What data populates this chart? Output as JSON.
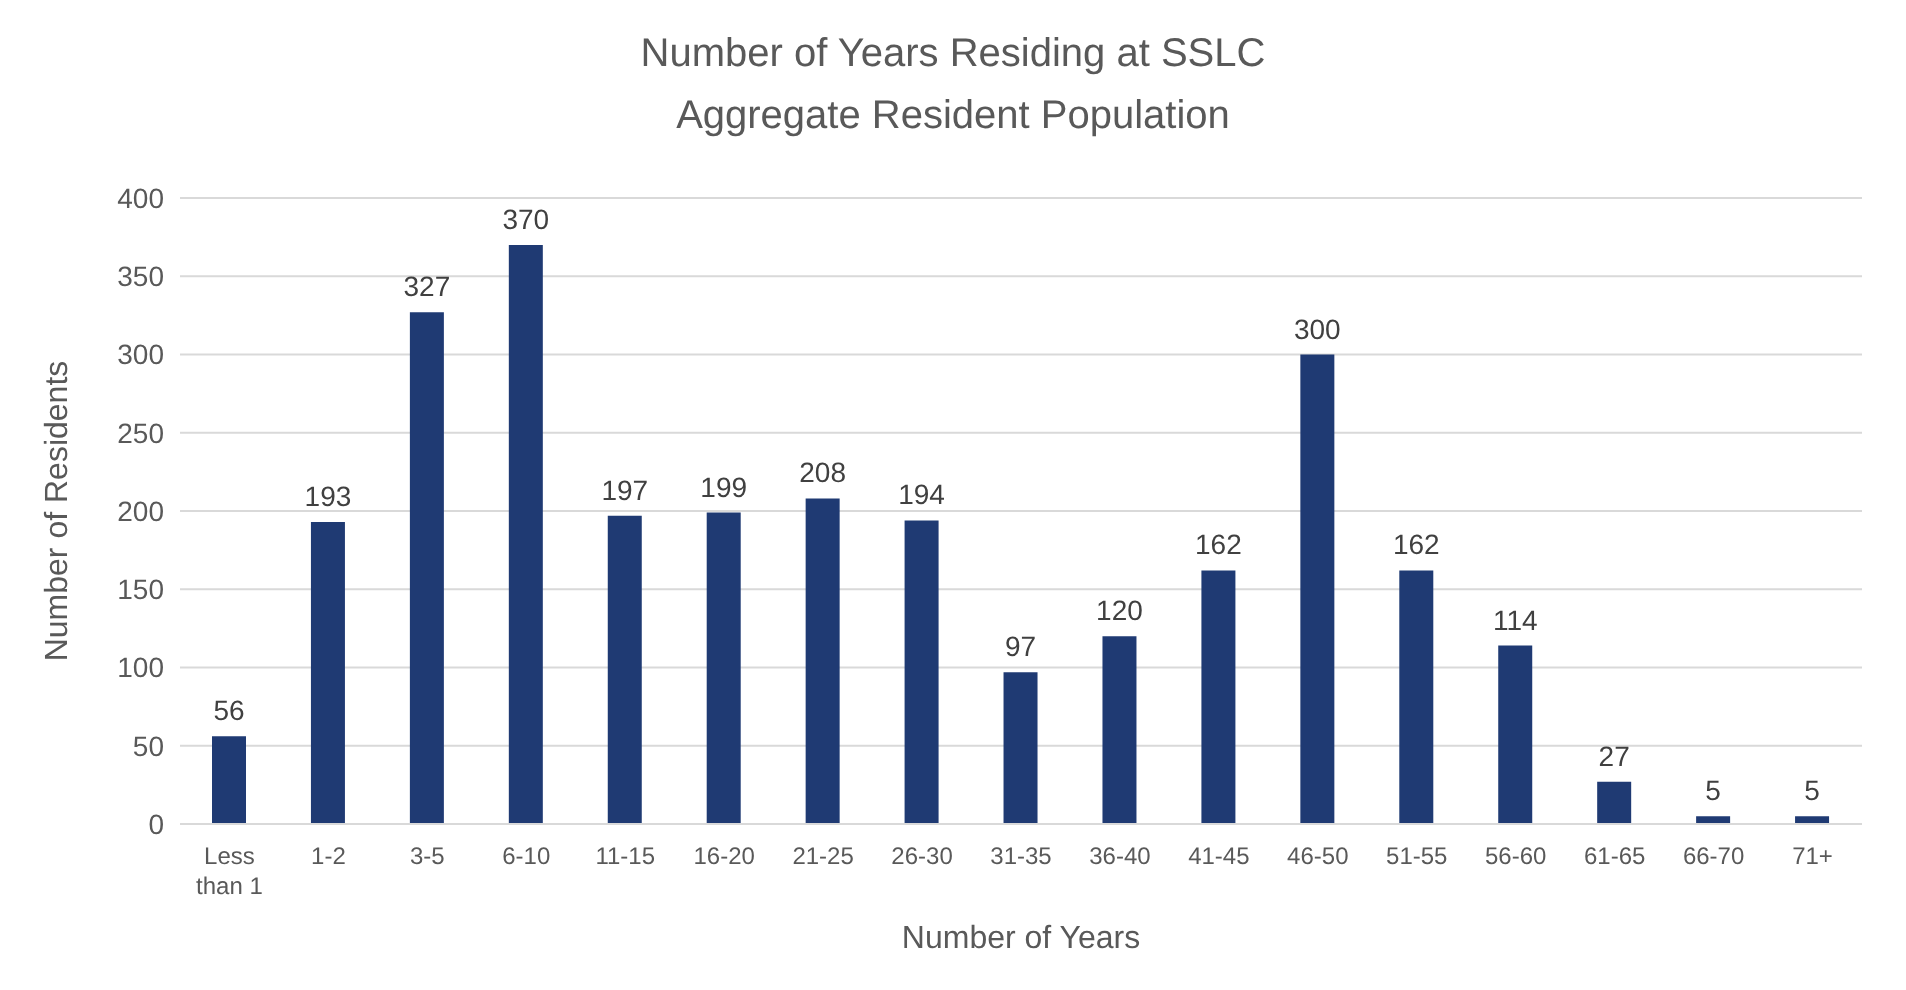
{
  "chart_data": {
    "type": "bar",
    "title": "Number of Years Residing at SSLC",
    "subtitle": "Aggregate Resident Population",
    "xlabel": "Number of Years",
    "ylabel": "Number of Residents",
    "categories": [
      "Less than 1",
      "1-2",
      "3-5",
      "6-10",
      "11-15",
      "16-20",
      "21-25",
      "26-30",
      "31-35",
      "36-40",
      "41-45",
      "46-50",
      "51-55",
      "56-60",
      "61-65",
      "66-70",
      "71+"
    ],
    "values": [
      56,
      193,
      327,
      370,
      197,
      199,
      208,
      194,
      97,
      120,
      162,
      300,
      162,
      114,
      27,
      5,
      5
    ],
    "color": "#1f3a73",
    "ylim": [
      0,
      400
    ],
    "yticks": [
      0,
      50,
      100,
      150,
      200,
      250,
      300,
      350,
      400
    ],
    "grid": "y",
    "data_labels": true
  }
}
